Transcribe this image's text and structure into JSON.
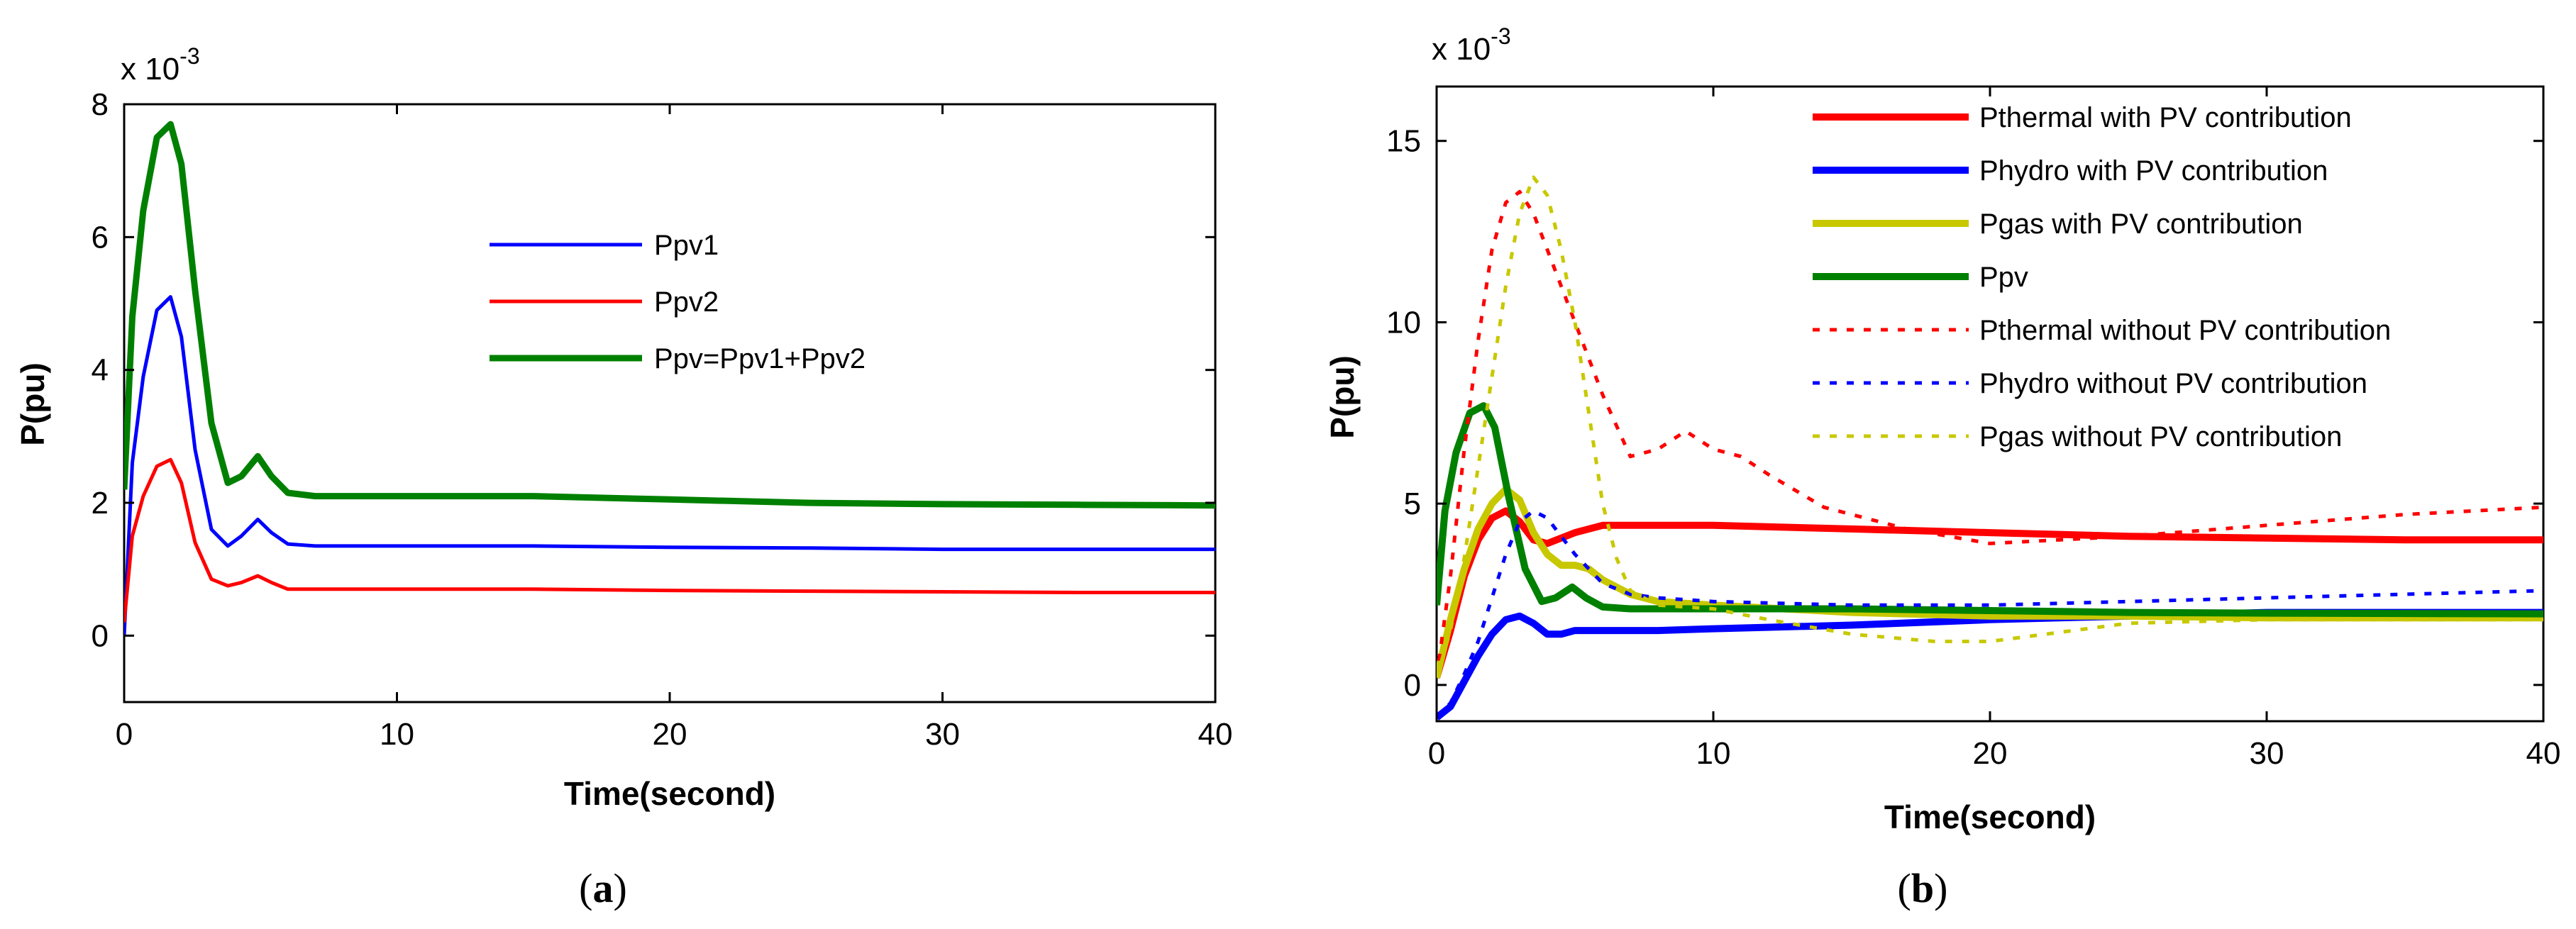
{
  "chart_data": [
    {
      "id": "a",
      "type": "line",
      "caption_open": "(",
      "caption_letter": "a",
      "caption_close": ")",
      "title": "",
      "xlabel": "Time(second)",
      "ylabel": "P(pu)",
      "exponent_base": "x 10",
      "exponent_power": "-3",
      "xlim": [
        0,
        40
      ],
      "ylim": [
        -1,
        8
      ],
      "xticks": [
        0,
        10,
        20,
        30,
        40
      ],
      "yticks": [
        0,
        2,
        4,
        6,
        8
      ],
      "grid": false,
      "legend_position": "center-right",
      "series": [
        {
          "name": "Ppv1",
          "color": "#0000ff",
          "style": "solid",
          "width": 5,
          "x": [
            0,
            0.3,
            0.7,
            1.2,
            1.7,
            2.1,
            2.6,
            3.2,
            3.8,
            4.3,
            4.9,
            5.4,
            6,
            7,
            8,
            10,
            15,
            20,
            25,
            30,
            35,
            40
          ],
          "y": [
            0,
            2.6,
            3.9,
            4.9,
            5.1,
            4.5,
            2.8,
            1.6,
            1.35,
            1.5,
            1.75,
            1.55,
            1.38,
            1.35,
            1.35,
            1.35,
            1.35,
            1.33,
            1.32,
            1.3,
            1.3,
            1.3
          ]
        },
        {
          "name": "Ppv2",
          "color": "#ff0000",
          "style": "solid",
          "width": 5,
          "x": [
            0,
            0.3,
            0.7,
            1.2,
            1.7,
            2.1,
            2.6,
            3.2,
            3.8,
            4.3,
            4.9,
            5.4,
            6,
            7,
            8,
            10,
            15,
            20,
            25,
            30,
            35,
            40
          ],
          "y": [
            0.2,
            1.5,
            2.1,
            2.55,
            2.65,
            2.3,
            1.4,
            0.85,
            0.75,
            0.8,
            0.9,
            0.8,
            0.7,
            0.7,
            0.7,
            0.7,
            0.7,
            0.68,
            0.67,
            0.66,
            0.65,
            0.65
          ]
        },
        {
          "name": "Ppv=Ppv1+Ppv2",
          "color": "#008000",
          "style": "solid",
          "width": 9,
          "x": [
            0,
            0.3,
            0.7,
            1.2,
            1.7,
            2.1,
            2.6,
            3.2,
            3.8,
            4.3,
            4.9,
            5.4,
            6,
            7,
            8,
            10,
            15,
            20,
            25,
            30,
            35,
            40
          ],
          "y": [
            2.2,
            4.8,
            6.4,
            7.5,
            7.7,
            7.1,
            5.2,
            3.2,
            2.3,
            2.4,
            2.7,
            2.4,
            2.15,
            2.1,
            2.1,
            2.1,
            2.1,
            2.05,
            2.0,
            1.98,
            1.97,
            1.96
          ]
        }
      ]
    },
    {
      "id": "b",
      "type": "line",
      "caption_open": "(",
      "caption_letter": "b",
      "caption_close": ")",
      "title": "",
      "xlabel": "Time(second)",
      "ylabel": "P(pu)",
      "exponent_base": "x 10",
      "exponent_power": "-3",
      "xlim": [
        0,
        40
      ],
      "ylim": [
        -1,
        16.5
      ],
      "xticks": [
        0,
        10,
        20,
        30,
        40
      ],
      "yticks": [
        0,
        5,
        10,
        15
      ],
      "grid": false,
      "legend_position": "top-right",
      "series": [
        {
          "name": "Pthermal with PV contribution",
          "color": "#ff0000",
          "style": "solid",
          "width": 10,
          "x": [
            0,
            0.5,
            1,
            1.5,
            2,
            2.5,
            3,
            3.5,
            4,
            5,
            6,
            8,
            10,
            15,
            20,
            25,
            30,
            35,
            40
          ],
          "y": [
            0.2,
            1.5,
            3.0,
            4.0,
            4.6,
            4.8,
            4.5,
            4.0,
            3.9,
            4.2,
            4.4,
            4.4,
            4.4,
            4.3,
            4.2,
            4.1,
            4.05,
            4.0,
            4.0
          ]
        },
        {
          "name": "Phydro with PV contribution",
          "color": "#0000ff",
          "style": "solid",
          "width": 10,
          "x": [
            0,
            0.5,
            1,
            1.5,
            2,
            2.5,
            3,
            3.5,
            4,
            4.5,
            5,
            6,
            8,
            10,
            15,
            20,
            25,
            30,
            35,
            40
          ],
          "y": [
            -0.9,
            -0.6,
            0.1,
            0.8,
            1.4,
            1.8,
            1.9,
            1.7,
            1.4,
            1.4,
            1.5,
            1.5,
            1.5,
            1.55,
            1.65,
            1.8,
            1.9,
            2.0,
            2.0,
            2.0
          ]
        },
        {
          "name": "Pgas  with PV contribution",
          "color": "#c8c800",
          "style": "solid",
          "width": 10,
          "x": [
            0,
            0.5,
            1,
            1.5,
            2,
            2.5,
            3,
            3.5,
            4,
            4.5,
            5,
            5.5,
            6,
            7,
            8,
            10,
            15,
            20,
            25,
            30,
            35,
            40
          ],
          "y": [
            0.2,
            1.8,
            3.2,
            4.3,
            5.0,
            5.4,
            5.1,
            4.2,
            3.6,
            3.3,
            3.3,
            3.2,
            2.9,
            2.5,
            2.3,
            2.2,
            2.0,
            1.9,
            1.9,
            1.85,
            1.85,
            1.85
          ]
        },
        {
          "name": "Ppv",
          "color": "#008000",
          "style": "solid",
          "width": 10,
          "x": [
            0,
            0.3,
            0.7,
            1.2,
            1.7,
            2.1,
            2.6,
            3.2,
            3.8,
            4.3,
            4.9,
            5.4,
            6,
            7,
            8,
            10,
            15,
            20,
            25,
            30,
            35,
            40
          ],
          "y": [
            2.2,
            4.8,
            6.4,
            7.5,
            7.7,
            7.1,
            5.2,
            3.2,
            2.3,
            2.4,
            2.7,
            2.4,
            2.15,
            2.1,
            2.1,
            2.1,
            2.1,
            2.05,
            2.0,
            1.98,
            1.97,
            1.96
          ]
        },
        {
          "name": "Pthermal  without  PV contribution",
          "color": "#ff0000",
          "style": "dotted",
          "width": 5,
          "x": [
            0,
            0.5,
            1,
            1.5,
            2,
            2.5,
            3,
            3.5,
            4,
            4.5,
            5,
            6,
            7,
            8,
            9,
            10,
            11,
            12,
            14,
            17,
            20,
            25,
            30,
            35,
            40
          ],
          "y": [
            0.2,
            3.0,
            6.5,
            9.5,
            12.0,
            13.3,
            13.6,
            13.0,
            12.0,
            11.0,
            10.0,
            8.0,
            6.3,
            6.5,
            7.0,
            6.5,
            6.3,
            5.8,
            4.9,
            4.3,
            3.9,
            4.1,
            4.4,
            4.7,
            4.9
          ]
        },
        {
          "name": "Phydro without  PV contribution",
          "color": "#0000ff",
          "style": "dotted",
          "width": 5,
          "x": [
            0,
            0.5,
            1,
            1.5,
            2,
            2.5,
            3,
            3.5,
            4,
            5,
            6,
            7,
            8,
            10,
            15,
            20,
            25,
            30,
            35,
            40
          ],
          "y": [
            -0.9,
            -0.5,
            0.3,
            1.2,
            2.4,
            3.6,
            4.5,
            4.8,
            4.6,
            3.6,
            2.8,
            2.5,
            2.4,
            2.3,
            2.2,
            2.2,
            2.3,
            2.4,
            2.5,
            2.6
          ]
        },
        {
          "name": "Pgas without PV contribution",
          "color": "#c8c800",
          "style": "dotted",
          "width": 5,
          "x": [
            0,
            0.5,
            1,
            1.5,
            2,
            2.5,
            3,
            3.5,
            4,
            4.5,
            5,
            5.5,
            6,
            6.5,
            7,
            8,
            10,
            12,
            15,
            18,
            20,
            22,
            25,
            30,
            35,
            40
          ],
          "y": [
            0.2,
            1.5,
            3.5,
            6.0,
            8.5,
            11.0,
            13.0,
            14.0,
            13.5,
            12.0,
            10.0,
            7.5,
            5.0,
            3.5,
            2.6,
            2.2,
            2.1,
            1.8,
            1.4,
            1.2,
            1.2,
            1.4,
            1.7,
            1.8,
            1.8,
            1.8
          ]
        }
      ]
    }
  ]
}
